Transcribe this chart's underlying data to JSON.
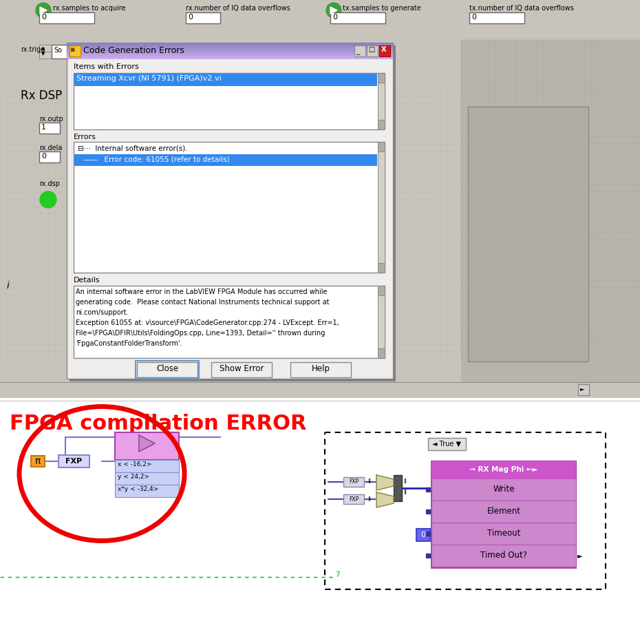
{
  "fig_width": 9.3,
  "fig_height": 9.02,
  "dpi": 100,
  "bg_color": "#c8c4bc",
  "item_text": "Streaming Xcvr (NI 5791) (FPGA)v2.vi",
  "error_tree_text": "Internal software error(s).",
  "error_item_text": "Error code: 61055 (refer to details)",
  "details_text_1": "An internal software error in the LabVIEW FPGA Module has occurred while",
  "details_text_2": "generating code.  Please contact National Instruments technical support at",
  "details_text_3": "ni.com/support.",
  "details_text_4": "Exception 61055 at: v\\source\\FPGA\\CodeGenerator.cpp:274 - LVExcept. Err=1,",
  "details_text_5": "File=\\FPGA\\DFIR\\Utils\\FoldingOps.cpp, Line=1393, Detail='' thrown during",
  "details_text_6": "'FpgaConstantFolderTransform'.",
  "close_btn": "Close",
  "showerror_btn": "Show Error",
  "help_btn": "Help",
  "title_text": "FPGA compilation ERROR",
  "title_color": "#ff0000",
  "title_fontsize": 22,
  "dialog_title": "Code Generation Errors",
  "items_label": "Items with Errors",
  "errors_label": "Errors",
  "details_label": "Details",
  "rx_samples_label": "rx.samples to acquire",
  "rx_iq_label": "rx.number of IQ data overflows",
  "tx_samples_label": "tx.samples to generate",
  "tx_iq_label": "tx.number of IQ data overflows",
  "rx_dsp_label": "Rx DSP"
}
